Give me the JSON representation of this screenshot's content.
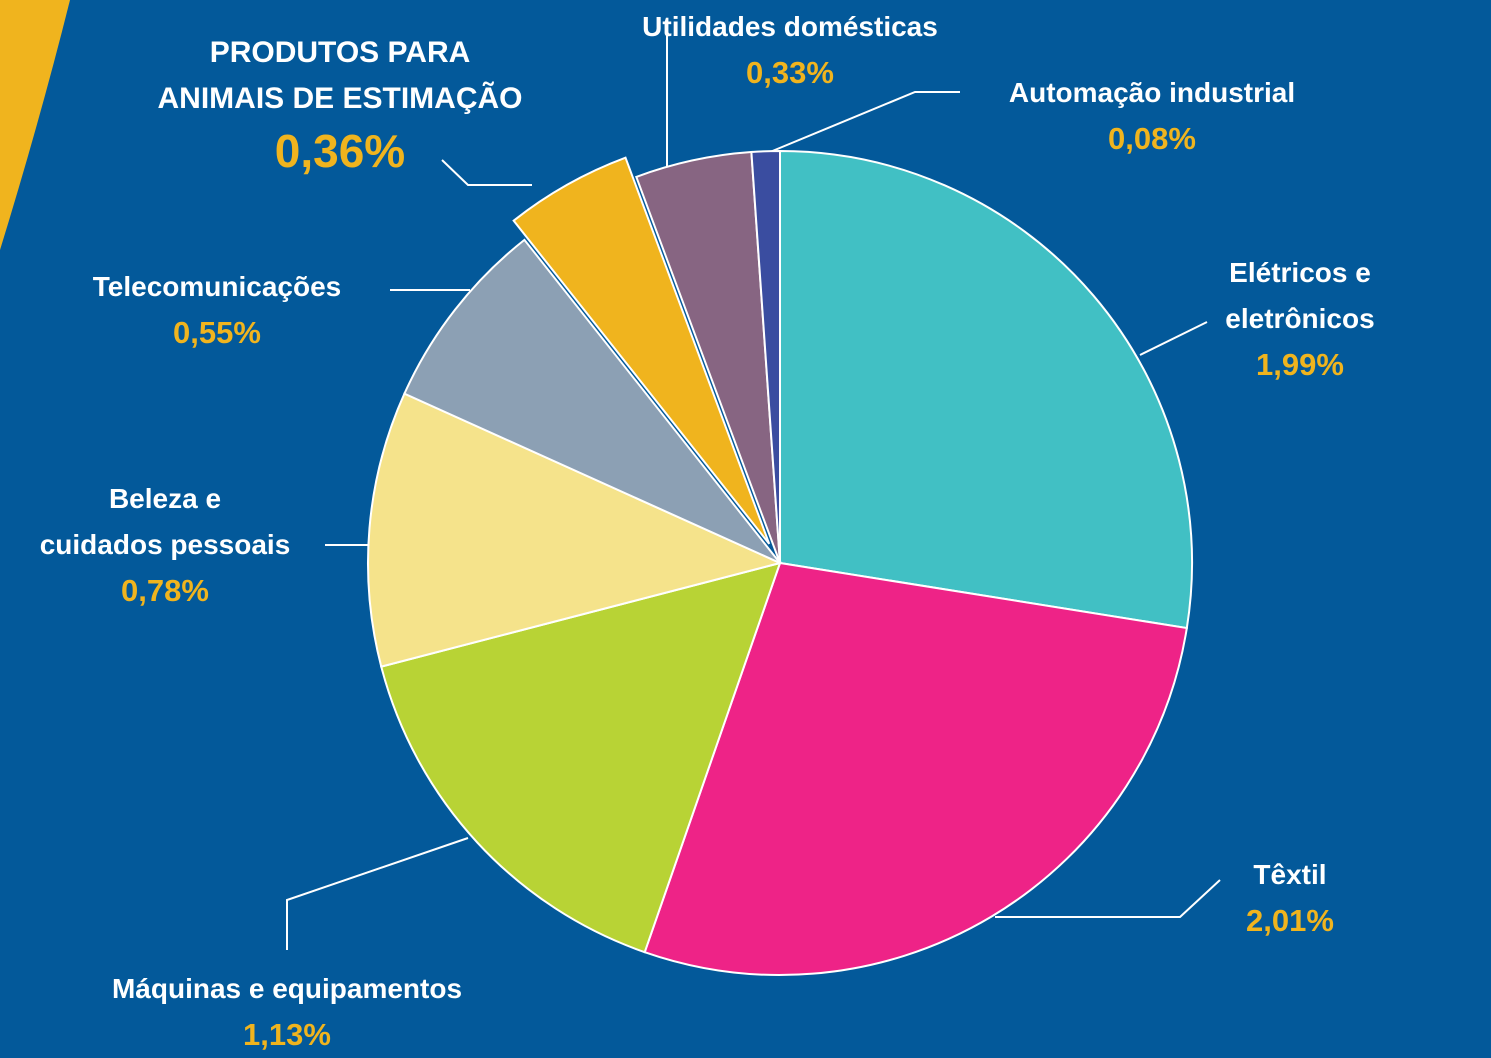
{
  "chart_data": {
    "type": "pie",
    "categories": [
      "Elétricos e eletrônicos",
      "Têxtil",
      "Máquinas e equipamentos",
      "Beleza e\ncuidados pessoais",
      "Telecomunicações",
      "PRODUTOS PARA\nANIMAIS DE ESTIMAÇÃO",
      "Utilidades domésticas",
      "Automação industrial"
    ],
    "values": [
      1.99,
      2.01,
      1.13,
      0.78,
      0.55,
      0.36,
      0.33,
      0.08
    ],
    "value_labels": [
      "1,99%",
      "2,01%",
      "1,13%",
      "0,78%",
      "0,55%",
      "0,36%",
      "0,33%",
      "0,08%"
    ],
    "colors": [
      "#41c0c4",
      "#ee2387",
      "#b8d335",
      "#f5e38b",
      "#8ca0b4",
      "#f0b41e",
      "#876582",
      "#3a4da0"
    ]
  }
}
